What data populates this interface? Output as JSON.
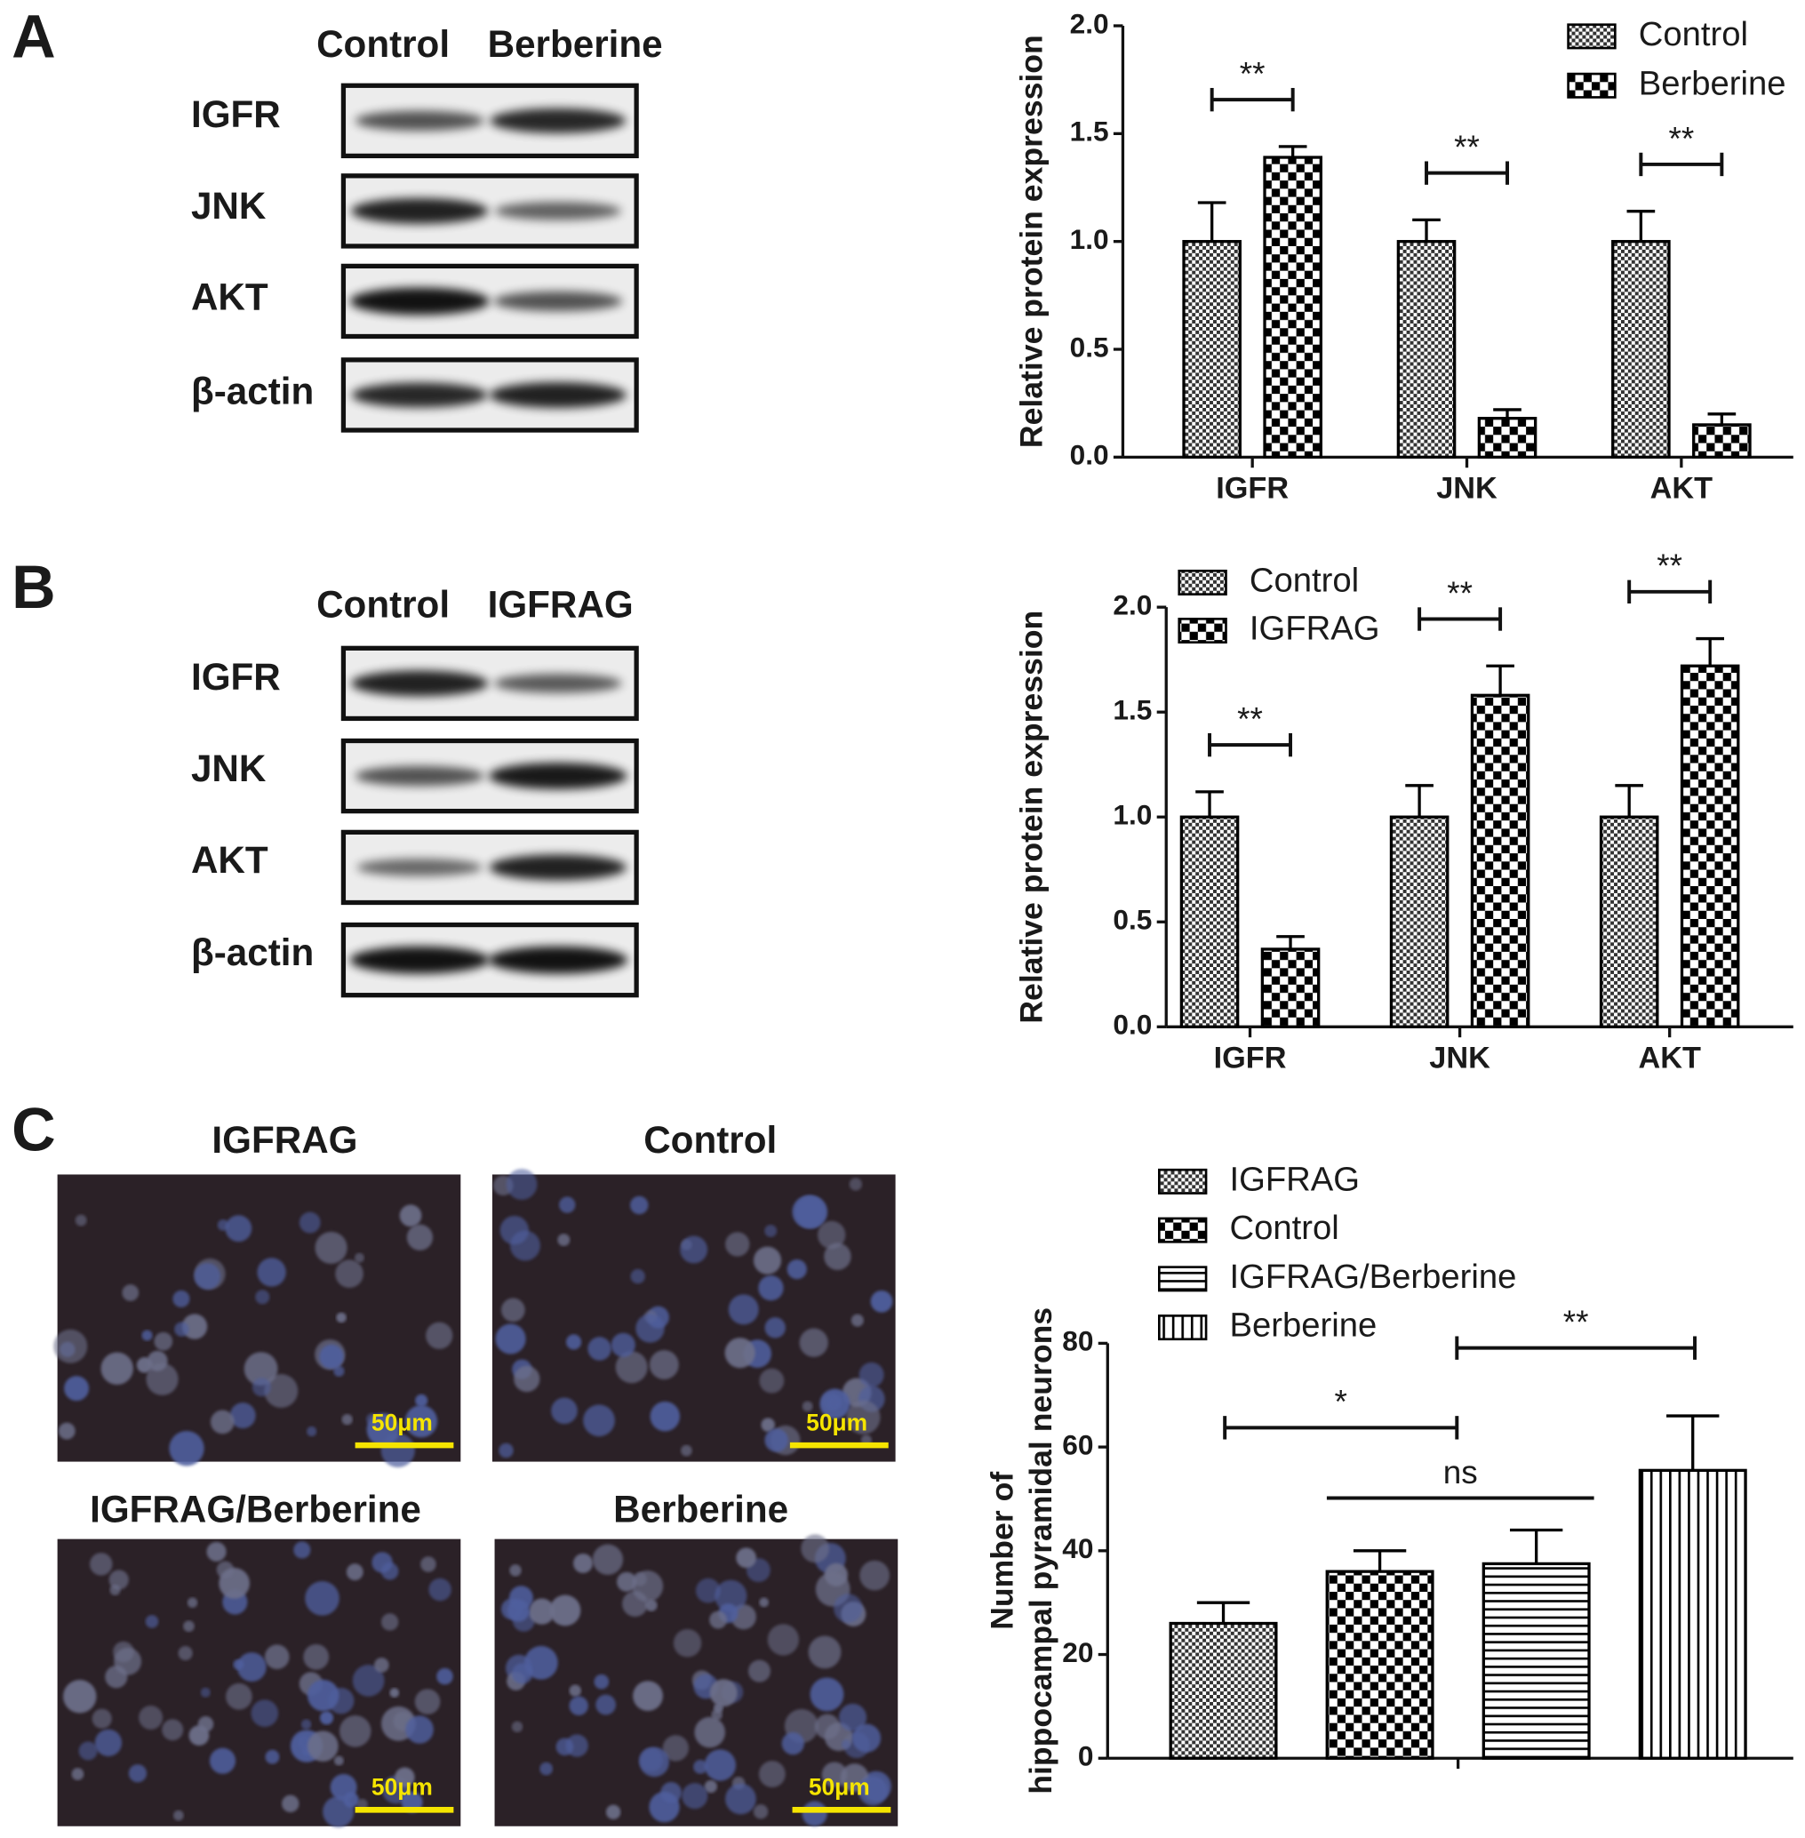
{
  "panels": [
    {
      "label": "A",
      "blot_columns": [
        "Control",
        "Berberine"
      ],
      "blot_rows": [
        "IGFR",
        "JNK",
        "AKT",
        "β-actin"
      ]
    },
    {
      "label": "B",
      "blot_columns": [
        "Control",
        "IGFRAG"
      ],
      "blot_rows": [
        "IGFR",
        "JNK",
        "AKT",
        "β-actin"
      ]
    },
    {
      "label": "C",
      "image_titles": [
        "IGFRAG",
        "Control",
        "IGFRAG/Berberine",
        "Berberine"
      ],
      "scale_bar": "50μm"
    }
  ],
  "chart_data": [
    {
      "type": "bar",
      "y_label": "Relative protein expression",
      "categories": [
        "IGFR",
        "JNK",
        "AKT"
      ],
      "series": [
        {
          "name": "Control",
          "pattern": "fine-check",
          "color": "#000000",
          "values": [
            1.0,
            1.0,
            1.0
          ],
          "errors": [
            0.18,
            0.1,
            0.14
          ]
        },
        {
          "name": "Berberine",
          "pattern": "check",
          "color": "#000000",
          "values": [
            1.39,
            0.18,
            0.15
          ],
          "errors": [
            0.05,
            0.04,
            0.05
          ]
        }
      ],
      "significance": [
        "**",
        "**",
        "**"
      ],
      "ylim": [
        0,
        2
      ],
      "yticks": [
        {
          "value": 0,
          "label": "0.0"
        },
        {
          "value": 0.5,
          "label": "0.5"
        },
        {
          "value": 1,
          "label": "1.0"
        },
        {
          "value": 1.5,
          "label": "1.5"
        },
        {
          "value": 2,
          "label": "2.0"
        }
      ],
      "legend": "upper right"
    },
    {
      "type": "bar",
      "y_label": "Relative protein expression",
      "categories": [
        "IGFR",
        "JNK",
        "AKT"
      ],
      "series": [
        {
          "name": "Control",
          "pattern": "fine-check",
          "color": "#000000",
          "values": [
            1.0,
            1.0,
            1.0
          ],
          "errors": [
            0.12,
            0.15,
            0.15
          ]
        },
        {
          "name": "IGFRAG",
          "pattern": "check",
          "color": "#000000",
          "values": [
            0.37,
            1.58,
            1.72
          ],
          "errors": [
            0.06,
            0.14,
            0.13
          ]
        }
      ],
      "significance": [
        "**",
        "**",
        "**"
      ],
      "ylim": [
        0,
        2
      ],
      "yticks": [
        {
          "value": 0,
          "label": "0.0"
        },
        {
          "value": 0.5,
          "label": "0.5"
        },
        {
          "value": 1,
          "label": "1.0"
        },
        {
          "value": 1.5,
          "label": "1.5"
        },
        {
          "value": 2,
          "label": "2.0"
        }
      ],
      "legend": "upper left"
    },
    {
      "type": "bar",
      "y_label": [
        "Number of",
        "hippocampal pyramidal neurons"
      ],
      "categories": [
        null
      ],
      "series": [
        {
          "name": "IGFRAG",
          "pattern": "fine-check",
          "color": "#000000",
          "values": [
            26
          ],
          "errors": [
            4
          ]
        },
        {
          "name": "Control",
          "pattern": "check",
          "color": "#000000",
          "values": [
            36
          ],
          "errors": [
            4
          ]
        },
        {
          "name": "IGFRAG/Berberine",
          "pattern": "hlines",
          "color": "#000000",
          "values": [
            37.5
          ],
          "errors": [
            6.5
          ]
        },
        {
          "name": "Berberine",
          "pattern": "vlines",
          "color": "#000000",
          "values": [
            55.5
          ],
          "errors": [
            10.5
          ]
        }
      ],
      "significance": [
        "*",
        "ns",
        "**"
      ],
      "ylim": [
        0,
        80
      ],
      "yticks": [
        0,
        20,
        40,
        60,
        80
      ],
      "legend": "upper left"
    }
  ]
}
